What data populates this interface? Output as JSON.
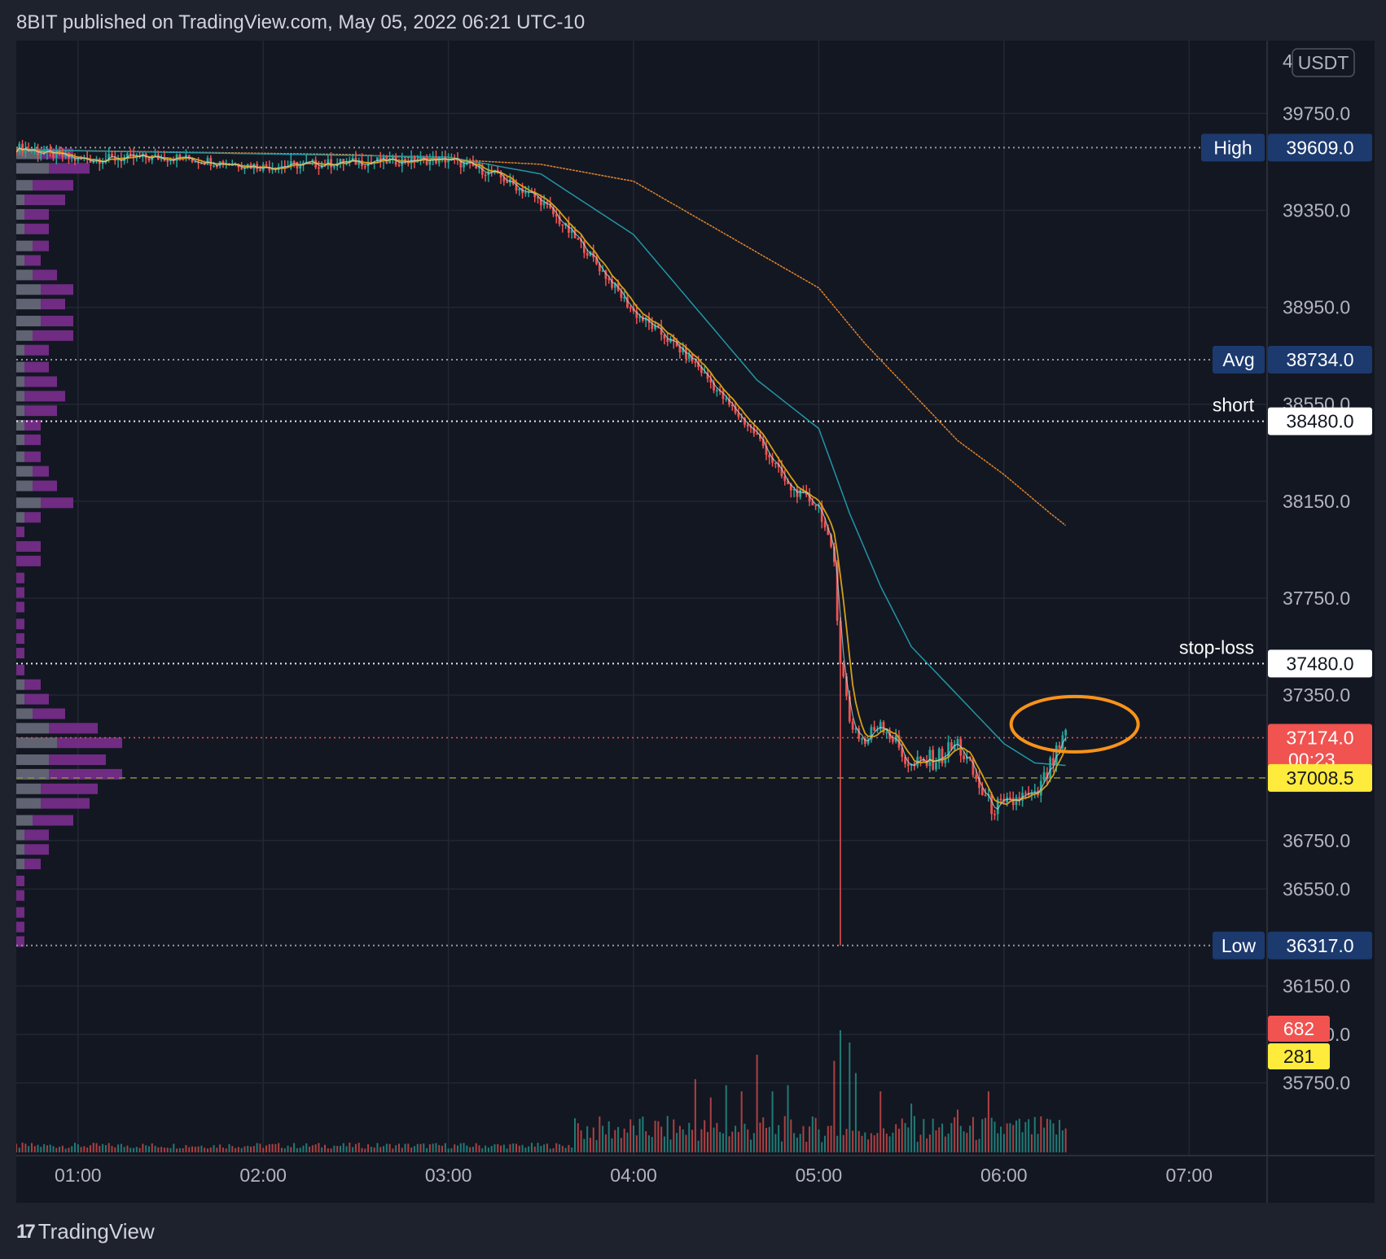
{
  "header": {
    "text": "8BIT published on TradingView.com, May 05, 2022 06:21 UTC-10"
  },
  "footer": {
    "brand": "TradingView",
    "logo_icon": "tradingview-logo-icon"
  },
  "currency_label": "USDT",
  "colors": {
    "background": "#131722",
    "up": "#26a69a",
    "down": "#ef5350",
    "ma_fast": "#d4a017",
    "ma_mid": "#2196a6",
    "ma_slow": "#e0842c",
    "highlight_circle": "#f7931a",
    "tag_dark": "#1c3a6e",
    "tag_current": "#f05350",
    "tag_vwap": "#ffeb3b"
  },
  "chart_data": {
    "type": "candlestick",
    "symbol_currency": "USDT",
    "x_ticks": [
      "01:00",
      "02:00",
      "03:00",
      "04:00",
      "05:00",
      "06:00",
      "07:00"
    ],
    "x_range": [
      "00:40",
      "07:25"
    ],
    "y_ticks": [
      39750.0,
      39350.0,
      38950.0,
      38550.0,
      38150.0,
      37750.0,
      37350.0,
      36750.0,
      36550.0,
      36150.0,
      35950.0,
      35750.0
    ],
    "y_range": [
      35450,
      40050
    ],
    "top_partial_tick": "4",
    "levels": [
      {
        "label": "High",
        "value": 39609.0,
        "value_text": "39609.0",
        "style": "dotted"
      },
      {
        "label": "Avg",
        "value": 38734.0,
        "value_text": "38734.0",
        "style": "dotted"
      },
      {
        "label": "short",
        "value": 38480.0,
        "value_text": "38480.0",
        "style": "dotted-white"
      },
      {
        "label": "stop-loss",
        "value": 37480.0,
        "value_text": "37480.0",
        "style": "dotted-white"
      },
      {
        "label": "Low",
        "value": 36317.0,
        "value_text": "36317.0",
        "style": "dotted"
      }
    ],
    "current_price": {
      "value": 37174.0,
      "value_text": "37174.0",
      "countdown": "00:23"
    },
    "vwap": {
      "value": 37008.5,
      "value_text": "37008.5"
    },
    "volume_labels": {
      "volume": "682",
      "volume_ma": "281"
    },
    "price_path": [
      [
        "00:40",
        39610
      ],
      [
        "01:00",
        39560
      ],
      [
        "01:30",
        39570
      ],
      [
        "02:00",
        39530
      ],
      [
        "02:30",
        39550
      ],
      [
        "03:00",
        39560
      ],
      [
        "03:15",
        39500
      ],
      [
        "03:30",
        39390
      ],
      [
        "03:45",
        39180
      ],
      [
        "04:00",
        38930
      ],
      [
        "04:10",
        38830
      ],
      [
        "04:20",
        38720
      ],
      [
        "04:30",
        38560
      ],
      [
        "04:40",
        38420
      ],
      [
        "04:50",
        38210
      ],
      [
        "05:00",
        38130
      ],
      [
        "05:05",
        37900
      ],
      [
        "05:07",
        37500
      ],
      [
        "05:10",
        37250
      ],
      [
        "05:15",
        37150
      ],
      [
        "05:20",
        37250
      ],
      [
        "05:30",
        37050
      ],
      [
        "05:40",
        37100
      ],
      [
        "05:45",
        37150
      ],
      [
        "05:55",
        36900
      ],
      [
        "06:00",
        36880
      ],
      [
        "06:05",
        36930
      ],
      [
        "06:10",
        36920
      ],
      [
        "06:15",
        37050
      ],
      [
        "06:20",
        37174
      ]
    ],
    "ma_slow_path": [
      [
        "00:40",
        39600
      ],
      [
        "02:30",
        39580
      ],
      [
        "03:30",
        39540
      ],
      [
        "04:00",
        39470
      ],
      [
        "04:30",
        39250
      ],
      [
        "05:00",
        39030
      ],
      [
        "05:15",
        38800
      ],
      [
        "05:30",
        38600
      ],
      [
        "05:45",
        38400
      ],
      [
        "06:00",
        38260
      ],
      [
        "06:15",
        38100
      ],
      [
        "06:20",
        38050
      ]
    ],
    "ma_mid_path": [
      [
        "00:40",
        39600
      ],
      [
        "03:00",
        39570
      ],
      [
        "03:30",
        39500
      ],
      [
        "04:00",
        39250
      ],
      [
        "04:20",
        38950
      ],
      [
        "04:40",
        38650
      ],
      [
        "05:00",
        38450
      ],
      [
        "05:10",
        38100
      ],
      [
        "05:20",
        37800
      ],
      [
        "05:30",
        37550
      ],
      [
        "05:45",
        37350
      ],
      [
        "06:00",
        37150
      ],
      [
        "06:10",
        37070
      ],
      [
        "06:20",
        37060
      ]
    ],
    "volume_profile": [
      {
        "price": 39580,
        "buy": 3,
        "sell": 4
      },
      {
        "price": 39520,
        "buy": 4,
        "sell": 5
      },
      {
        "price": 39450,
        "buy": 2,
        "sell": 5
      },
      {
        "price": 39390,
        "buy": 1,
        "sell": 5
      },
      {
        "price": 39330,
        "buy": 1,
        "sell": 3
      },
      {
        "price": 39270,
        "buy": 1,
        "sell": 3
      },
      {
        "price": 39200,
        "buy": 2,
        "sell": 2
      },
      {
        "price": 39140,
        "buy": 1,
        "sell": 2
      },
      {
        "price": 39080,
        "buy": 2,
        "sell": 3
      },
      {
        "price": 39020,
        "buy": 3,
        "sell": 4
      },
      {
        "price": 38960,
        "buy": 3,
        "sell": 3
      },
      {
        "price": 38890,
        "buy": 3,
        "sell": 4
      },
      {
        "price": 38830,
        "buy": 2,
        "sell": 5
      },
      {
        "price": 38770,
        "buy": 1,
        "sell": 3
      },
      {
        "price": 38700,
        "buy": 1,
        "sell": 3
      },
      {
        "price": 38640,
        "buy": 1,
        "sell": 4
      },
      {
        "price": 38580,
        "buy": 1,
        "sell": 5
      },
      {
        "price": 38520,
        "buy": 1,
        "sell": 4
      },
      {
        "price": 38460,
        "buy": 1,
        "sell": 2
      },
      {
        "price": 38400,
        "buy": 1,
        "sell": 2
      },
      {
        "price": 38330,
        "buy": 1,
        "sell": 2
      },
      {
        "price": 38270,
        "buy": 2,
        "sell": 2
      },
      {
        "price": 38210,
        "buy": 2,
        "sell": 3
      },
      {
        "price": 38140,
        "buy": 3,
        "sell": 4
      },
      {
        "price": 38080,
        "buy": 1,
        "sell": 2
      },
      {
        "price": 38020,
        "buy": 0,
        "sell": 1
      },
      {
        "price": 37960,
        "buy": 0,
        "sell": 3
      },
      {
        "price": 37900,
        "buy": 0,
        "sell": 3
      },
      {
        "price": 37830,
        "buy": 0,
        "sell": 1
      },
      {
        "price": 37770,
        "buy": 0,
        "sell": 1
      },
      {
        "price": 37710,
        "buy": 0,
        "sell": 1
      },
      {
        "price": 37640,
        "buy": 0,
        "sell": 1
      },
      {
        "price": 37580,
        "buy": 0,
        "sell": 1
      },
      {
        "price": 37520,
        "buy": 0,
        "sell": 1
      },
      {
        "price": 37450,
        "buy": 0,
        "sell": 1
      },
      {
        "price": 37390,
        "buy": 1,
        "sell": 2
      },
      {
        "price": 37330,
        "buy": 1,
        "sell": 3
      },
      {
        "price": 37270,
        "buy": 2,
        "sell": 4
      },
      {
        "price": 37210,
        "buy": 4,
        "sell": 6
      },
      {
        "price": 37150,
        "buy": 5,
        "sell": 8
      },
      {
        "price": 37080,
        "buy": 4,
        "sell": 7
      },
      {
        "price": 37020,
        "buy": 4,
        "sell": 9
      },
      {
        "price": 36960,
        "buy": 3,
        "sell": 7
      },
      {
        "price": 36900,
        "buy": 3,
        "sell": 6
      },
      {
        "price": 36830,
        "buy": 2,
        "sell": 5
      },
      {
        "price": 36770,
        "buy": 1,
        "sell": 3
      },
      {
        "price": 36710,
        "buy": 1,
        "sell": 3
      },
      {
        "price": 36650,
        "buy": 1,
        "sell": 2
      },
      {
        "price": 36580,
        "buy": 0,
        "sell": 1
      },
      {
        "price": 36520,
        "buy": 0,
        "sell": 1
      },
      {
        "price": 36450,
        "buy": 0,
        "sell": 1
      },
      {
        "price": 36390,
        "buy": 0,
        "sell": 1
      },
      {
        "price": 36330,
        "buy": 0,
        "sell": 1
      }
    ],
    "volume_spikes": [
      [
        "04:20",
        0.6
      ],
      [
        "04:25",
        0.45
      ],
      [
        "04:30",
        0.55
      ],
      [
        "04:35",
        0.5
      ],
      [
        "04:40",
        0.8
      ],
      [
        "04:45",
        0.5
      ],
      [
        "04:50",
        0.55
      ],
      [
        "05:05",
        0.75
      ],
      [
        "05:07",
        1.0
      ],
      [
        "05:10",
        0.9
      ],
      [
        "05:12",
        0.65
      ],
      [
        "05:20",
        0.5
      ],
      [
        "05:30",
        0.4
      ],
      [
        "05:45",
        0.35
      ],
      [
        "05:55",
        0.5
      ]
    ],
    "highlight": {
      "center_time": "06:20",
      "center_price": 37230
    }
  }
}
